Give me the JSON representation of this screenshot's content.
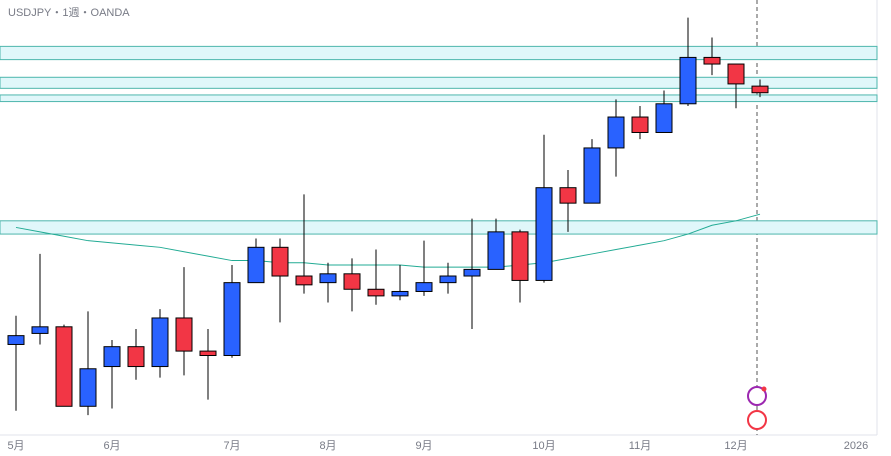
{
  "chart_data": {
    "type": "candlestick",
    "title": "USDJPY・1週・OANDA",
    "categories": [
      "5月",
      null,
      null,
      null,
      "6月",
      null,
      null,
      null,
      null,
      "7月",
      null,
      null,
      null,
      "8月",
      null,
      null,
      null,
      "9月",
      null,
      null,
      null,
      null,
      "10月",
      null,
      null,
      null,
      "11月",
      null,
      null,
      null,
      "12月",
      null,
      null,
      null,
      null,
      "2026"
    ],
    "open": [
      143.2,
      143.7,
      144.0,
      140.4,
      142.2,
      143.1,
      142.2,
      144.4,
      142.9,
      142.7,
      146.0,
      147.6,
      146.3,
      146.0,
      146.4,
      145.7,
      145.4,
      145.6,
      146.0,
      146.3,
      146.6,
      148.3,
      146.1,
      150.3,
      149.6,
      152.1,
      153.5,
      152.8,
      154.1,
      156.2,
      155.9,
      154.9,
      null,
      null,
      null,
      null
    ],
    "high": [
      144.5,
      147.3,
      144.1,
      144.7,
      143.4,
      143.9,
      144.8,
      146.7,
      143.9,
      146.8,
      148.0,
      148.0,
      150.0,
      146.9,
      147.1,
      147.5,
      146.8,
      147.9,
      146.9,
      148.9,
      148.9,
      148.4,
      152.7,
      151.1,
      152.5,
      154.3,
      154.0,
      154.7,
      158.0,
      157.1,
      155.9,
      155.2,
      null,
      null,
      null,
      null
    ],
    "low": [
      140.2,
      143.2,
      140.4,
      140.0,
      140.3,
      141.6,
      141.7,
      141.8,
      140.7,
      142.6,
      146.0,
      144.2,
      145.5,
      145.1,
      144.7,
      145.0,
      145.2,
      145.4,
      145.5,
      143.9,
      146.6,
      145.1,
      146.0,
      148.3,
      149.6,
      150.8,
      152.5,
      152.8,
      154.0,
      155.4,
      153.9,
      154.4,
      null,
      null,
      null,
      null
    ],
    "close": [
      143.6,
      144.0,
      140.4,
      142.1,
      143.1,
      142.2,
      144.4,
      142.9,
      142.7,
      146.0,
      147.6,
      146.3,
      145.9,
      146.4,
      145.7,
      145.4,
      145.6,
      146.0,
      146.3,
      146.6,
      148.3,
      146.1,
      150.3,
      149.6,
      152.1,
      153.5,
      152.8,
      154.1,
      156.2,
      155.9,
      155.0,
      154.6,
      null,
      null,
      null,
      null
    ],
    "up_color": "#2962ff",
    "down_color": "#f23645",
    "series": [
      {
        "color": "#22ab94",
        "values": [
          148.5,
          148.3,
          148.1,
          147.9,
          147.8,
          147.7,
          147.6,
          147.4,
          147.2,
          147.0,
          147.0,
          146.9,
          146.9,
          146.8,
          146.8,
          146.8,
          146.8,
          146.7,
          146.7,
          146.7,
          146.7,
          146.8,
          146.9,
          147.1,
          147.3,
          147.5,
          147.7,
          147.9,
          148.2,
          148.6,
          148.8,
          149.1,
          null,
          null,
          null,
          null
        ]
      }
    ],
    "zones": [
      [
        156.1,
        156.7
      ],
      [
        154.8,
        155.3
      ],
      [
        154.2,
        154.5
      ],
      [
        148.2,
        148.8
      ]
    ],
    "zone_color": "#e0f7fa",
    "zone_border": "#4db6ac",
    "ylim": [
      139.1,
      158.8
    ]
  }
}
